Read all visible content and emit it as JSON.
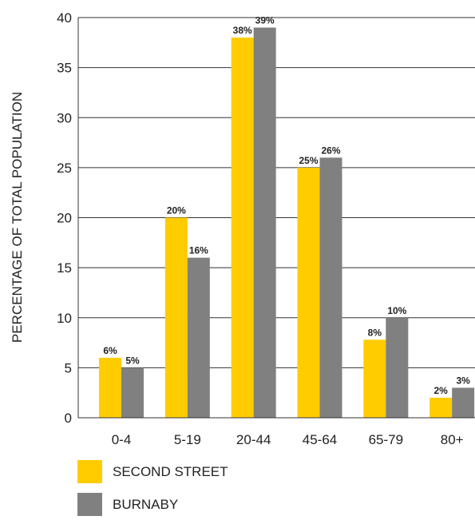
{
  "chart_data": {
    "type": "bar",
    "title": "",
    "xlabel": "",
    "ylabel": "PERCENTAGE OF TOTAL POPULATION",
    "ylim": [
      0,
      40
    ],
    "yticks": [
      0,
      5,
      10,
      15,
      20,
      25,
      30,
      35,
      40
    ],
    "grid": true,
    "legend_position": "bottom-left",
    "categories": [
      "0-4",
      "5-19",
      "20-44",
      "45-64",
      "65-79",
      "80+"
    ],
    "series": [
      {
        "name": "SECOND STREET",
        "color": "#ffcc00",
        "values": [
          6,
          20,
          38,
          25,
          7.8,
          2
        ],
        "labels": [
          "6%",
          "20%",
          "38%",
          "25%",
          "8%",
          "2%"
        ]
      },
      {
        "name": "BURNABY",
        "color": "#808080",
        "values": [
          5,
          16,
          39,
          26,
          10,
          3
        ],
        "labels": [
          "5%",
          "16%",
          "39%",
          "26%",
          "10%",
          "3%"
        ]
      }
    ]
  }
}
